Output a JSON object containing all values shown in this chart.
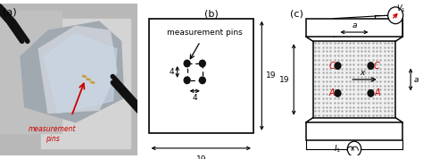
{
  "fig_width": 4.74,
  "fig_height": 1.78,
  "dpi": 100,
  "panel_a_label": "(a)",
  "panel_b_label": "(b)",
  "panel_c_label": "(c)",
  "dim_19_b": "19",
  "dim_4_v": "4",
  "dim_4_h": "4",
  "dim_19_c": "19",
  "dim_a_top": "a",
  "dim_a_right": "a",
  "label_C1": "C",
  "label_C2": "C",
  "label_A1": "A",
  "label_A2": "A",
  "label_x": "x",
  "label_V1": "$V_1$",
  "label_I1": "$I_1$",
  "bg_color": "#ffffff",
  "dot_color": "#111111",
  "red_color": "#cc0000",
  "photo_bg": "#a8a8a8",
  "meas_pins_text": "measurement\npins",
  "meas_pins_b_text": "measurement pins"
}
